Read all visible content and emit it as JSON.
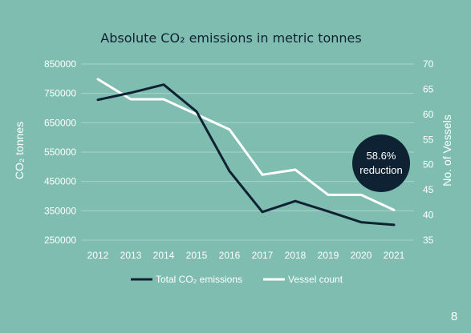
{
  "chart_data": {
    "type": "line",
    "title": "Absolute CO₂ emissions in metric tonnes",
    "ylabel_left": "CO₂ tonnes",
    "ylabel_right": "No. of Vessels",
    "x": [
      "2012",
      "2013",
      "2014",
      "2015",
      "2016",
      "2017",
      "2018",
      "2019",
      "2020",
      "2021"
    ],
    "y_left_ticks": [
      "850000",
      "750000",
      "650000",
      "550000",
      "450000",
      "350000",
      "250000"
    ],
    "y_right_ticks": [
      "70",
      "65",
      "60",
      "55",
      "50",
      "45",
      "40",
      "35"
    ],
    "ylim_left": [
      250000,
      850000
    ],
    "ylim_right": [
      35,
      70
    ],
    "grid": true,
    "legend_position": "bottom",
    "series": [
      {
        "name": "Total CO₂ emissions",
        "axis": "left",
        "color": "#0f2233",
        "values": [
          728000,
          752000,
          780000,
          688000,
          485000,
          346000,
          383000,
          348000,
          311000,
          302000
        ]
      },
      {
        "name": "Vessel count",
        "axis": "right",
        "color": "#ffffff",
        "values": [
          67,
          63,
          63,
          60,
          57,
          48,
          49,
          44,
          44,
          41
        ]
      }
    ],
    "annotation": {
      "line1": "58.6%",
      "line2": "reduction",
      "color": "#0f2233"
    }
  },
  "page_number": "8"
}
